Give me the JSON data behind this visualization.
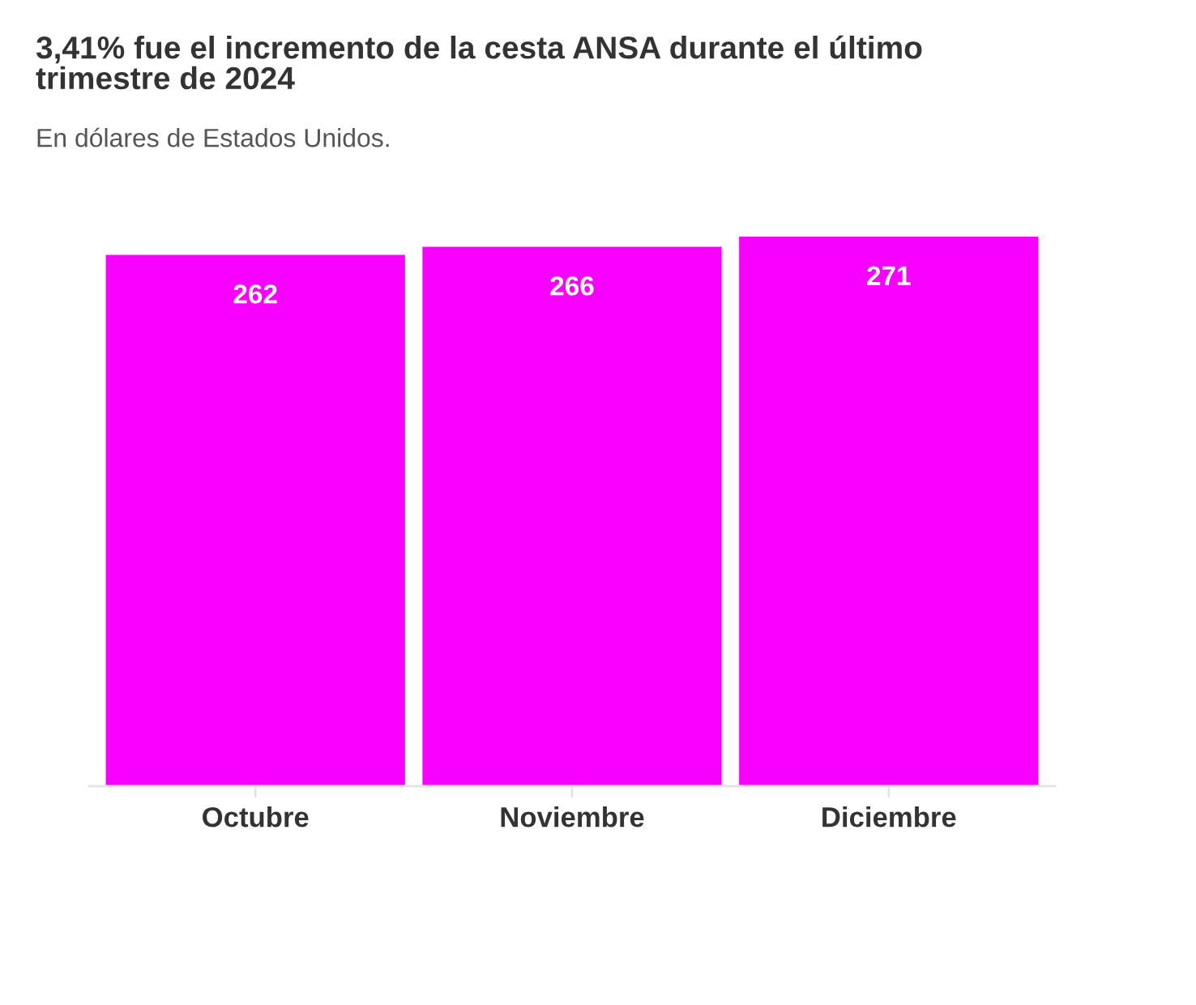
{
  "chart_data": {
    "type": "bar",
    "title": "3,41% fue el incremento de la cesta ANSA durante el último trimestre de 2024",
    "subtitle": "En dólares de Estados Unidos.",
    "categories": [
      "Octubre",
      "Noviembre",
      "Diciembre"
    ],
    "values": [
      262,
      266,
      271
    ],
    "color": "#f700ff",
    "data_labels": true,
    "tick_labels": "x"
  }
}
